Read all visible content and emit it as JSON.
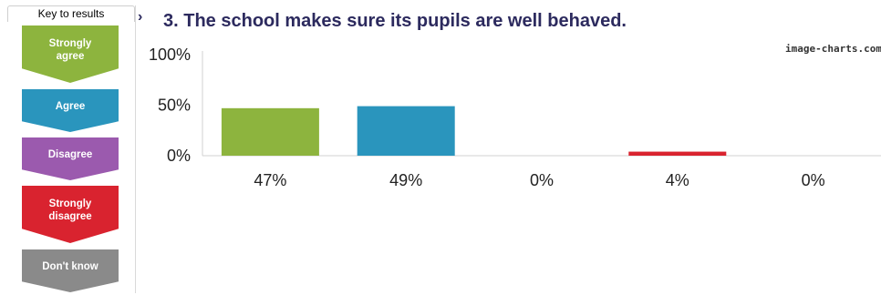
{
  "key": {
    "title": "Key to results",
    "items": [
      {
        "label": "Strongly agree",
        "color": "#8db43e"
      },
      {
        "label": "Agree",
        "color": "#2a95bd"
      },
      {
        "label": "Disagree",
        "color": "#9b5aae"
      },
      {
        "label": "Strongly disagree",
        "color": "#d9232f"
      },
      {
        "label": "Don't know",
        "color": "#8a8a8a"
      }
    ]
  },
  "heading": {
    "arrow": "›",
    "title": "3. The school makes sure its pupils are well behaved."
  },
  "watermark": "image-charts.com",
  "chart_data": {
    "type": "bar",
    "categories": [
      "Strongly agree",
      "Agree",
      "Disagree",
      "Strongly disagree",
      "Don't know"
    ],
    "values": [
      47,
      49,
      0,
      4,
      0
    ],
    "data_labels": [
      "47%",
      "49%",
      "0%",
      "4%",
      "0%"
    ],
    "colors": [
      "#8db43e",
      "#2a95bd",
      "#9b5aae",
      "#d9232f",
      "#8a8a8a"
    ],
    "y_ticks": [
      "0%",
      "50%",
      "100%"
    ],
    "ylim": [
      0,
      100
    ],
    "grid": false,
    "legend": "left"
  }
}
